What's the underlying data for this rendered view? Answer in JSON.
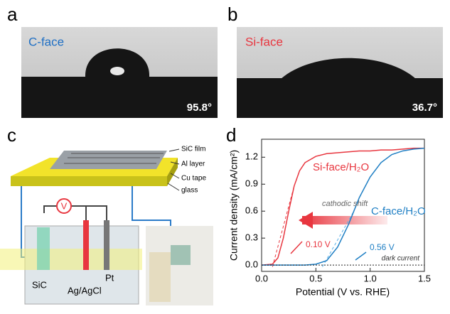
{
  "panels": {
    "a": {
      "label": "a",
      "face": "C-face",
      "angle": "95.8°"
    },
    "b": {
      "label": "b",
      "face": "Si-face",
      "angle": "36.7°"
    },
    "c": {
      "label": "c",
      "layers": [
        "SiC film",
        "Al layer",
        "Cu tape",
        "glass"
      ],
      "meter": "V",
      "electrodes": [
        "SiC",
        "Ag/AgCl",
        "Pt"
      ]
    }
  },
  "chart_data": {
    "type": "line",
    "panel_label": "d",
    "x_label": "Potential (V vs. RHE)",
    "y_label": "Current density (mA/cm²)",
    "x": [
      0,
      0.1,
      0.15,
      0.2,
      0.25,
      0.3,
      0.35,
      0.4,
      0.5,
      0.6,
      0.7,
      0.8,
      0.9,
      1.0,
      1.1,
      1.2,
      1.3,
      1.4,
      1.5
    ],
    "series": [
      {
        "name": "Si-face/H₂O",
        "color": "#e8363f",
        "values": [
          0,
          0.01,
          0.08,
          0.3,
          0.6,
          0.88,
          1.05,
          1.14,
          1.21,
          1.24,
          1.25,
          1.26,
          1.27,
          1.27,
          1.28,
          1.28,
          1.29,
          1.3,
          1.3
        ]
      },
      {
        "name": "C-face/H₂O",
        "color": "#1f7fc4",
        "values": [
          0,
          0,
          0,
          0,
          0,
          0,
          0,
          0,
          0.01,
          0.05,
          0.2,
          0.45,
          0.75,
          0.98,
          1.14,
          1.23,
          1.27,
          1.29,
          1.3
        ]
      },
      {
        "name": "dark current",
        "color": "#222222",
        "values": [
          0,
          0,
          0,
          0,
          0,
          0,
          0,
          0,
          0,
          0,
          0,
          0,
          0,
          0,
          0,
          0,
          0,
          0,
          0
        ]
      }
    ],
    "annotations": [
      "cathodic shift",
      "0.10 V",
      "0.56 V"
    ],
    "xlim": [
      0,
      1.5
    ],
    "ylim": [
      -0.07,
      1.4
    ],
    "xticks": [
      {
        "value": 0,
        "label": "0.0"
      },
      0.5,
      {
        "value": 1,
        "label": "1.0"
      },
      1.5
    ],
    "yticks": [
      {
        "value": 0,
        "label": "0.0"
      },
      0.3,
      0.6,
      0.9,
      1.2
    ]
  }
}
